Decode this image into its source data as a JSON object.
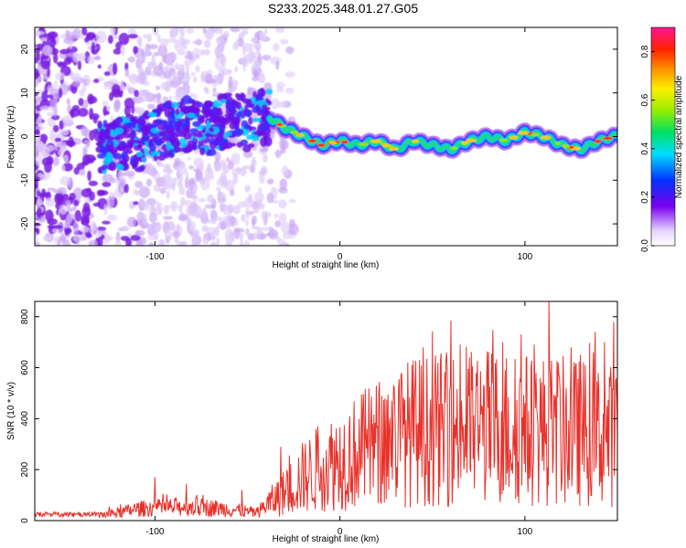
{
  "title": "S233.2025.348.01.27.G05",
  "colors": {
    "snr_line": "#e8312a",
    "axis": "#000000"
  },
  "chart_data": [
    {
      "type": "heatmap",
      "name": "spectrogram",
      "xlabel": "Height of straight line (km)",
      "ylabel": "Frequency (Hz)",
      "xlim": [
        -165,
        150
      ],
      "ylim": [
        -25,
        25
      ],
      "xticks": [
        -100,
        0,
        100
      ],
      "yticks": [
        -20,
        -10,
        0,
        10,
        20
      ],
      "colorbar": {
        "label": "Normalized spectral amplitude",
        "range": [
          0.0,
          0.9
        ],
        "ticks": [
          "0.0",
          "0.2",
          "0.4",
          "0.6",
          "0.8"
        ],
        "tick_values": [
          0.0,
          0.2,
          0.4,
          0.6,
          0.8
        ]
      },
      "ridge": {
        "x": [
          -130,
          -120,
          -110,
          -100,
          -90,
          -80,
          -70,
          -60,
          -50,
          -40,
          -30,
          -20,
          -10,
          0,
          10,
          20,
          30,
          40,
          50,
          60,
          70,
          80,
          90,
          100,
          110,
          120,
          130,
          140,
          148
        ],
        "y": [
          -3,
          -1,
          -2,
          0,
          2,
          3,
          2,
          4,
          3,
          5,
          2,
          0,
          -2,
          -1,
          -2,
          -1,
          -3,
          -1,
          -2,
          -3,
          -1,
          0,
          -1,
          1,
          0,
          -2,
          -3,
          -1,
          0
        ]
      }
    },
    {
      "type": "line",
      "name": "snr",
      "xlabel": "Height of straight line (km)",
      "ylabel": "SNR (10 * v/v)",
      "xlim": [
        -165,
        150
      ],
      "ylim": [
        0,
        860
      ],
      "xticks": [
        -100,
        0,
        100
      ],
      "yticks": [
        0,
        200,
        400,
        600,
        800
      ],
      "trend": {
        "x": [
          -165,
          -130,
          -120,
          -110,
          -100,
          -80,
          -60,
          -45,
          -40,
          -30,
          -20,
          -10,
          0,
          10,
          20,
          30,
          40,
          60,
          80,
          100,
          120,
          140,
          150
        ],
        "y": [
          20,
          22,
          30,
          45,
          50,
          55,
          45,
          30,
          60,
          110,
          170,
          210,
          240,
          270,
          300,
          330,
          350,
          360,
          370,
          360,
          350,
          340,
          330
        ]
      },
      "peaks": {
        "x": [
          -100,
          -83,
          -53,
          -32,
          -12,
          28,
          45,
          60,
          70,
          88,
          98,
          105,
          113,
          118,
          125,
          130,
          138,
          143,
          148
        ],
        "y": [
          170,
          145,
          120,
          290,
          370,
          470,
          680,
          785,
          640,
          700,
          730,
          690,
          860,
          620,
          680,
          650,
          740,
          700,
          780
        ]
      }
    }
  ]
}
